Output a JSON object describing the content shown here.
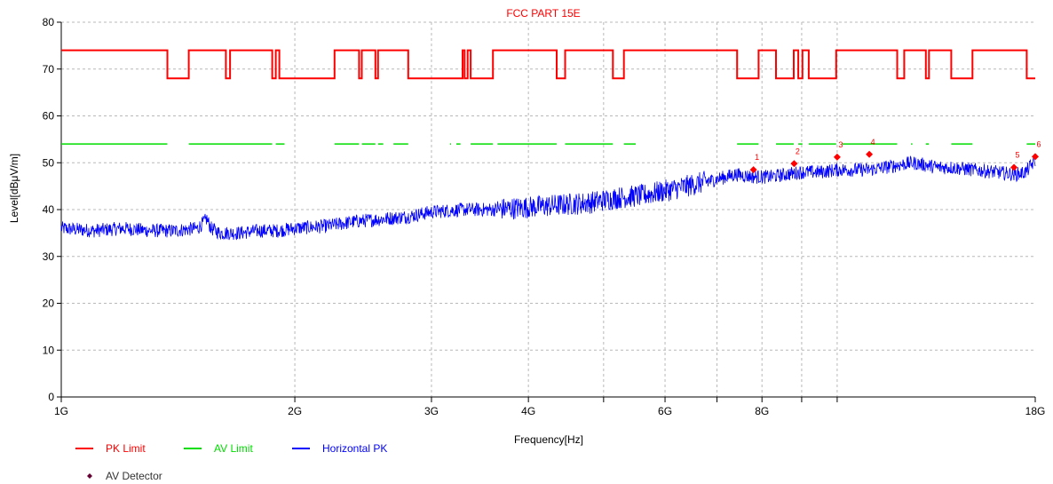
{
  "chart_data": {
    "type": "line",
    "title": "FCC PART 15E",
    "xlabel": "Frequency[Hz]",
    "ylabel": "Level[dBμV/m]",
    "xscale": "log",
    "xlim": [
      1000000000,
      18000000000
    ],
    "ylim": [
      0,
      80
    ],
    "grid": true,
    "x_ticks": [
      {
        "value": 1000000000,
        "label": "1G"
      },
      {
        "value": 2000000000,
        "label": "2G"
      },
      {
        "value": 3000000000,
        "label": "3G"
      },
      {
        "value": 4000000000,
        "label": "4G"
      },
      {
        "value": 5000000000,
        "label": ""
      },
      {
        "value": 6000000000,
        "label": "6G"
      },
      {
        "value": 7000000000,
        "label": ""
      },
      {
        "value": 8000000000,
        "label": "8G"
      },
      {
        "value": 9000000000,
        "label": ""
      },
      {
        "value": 10000000000,
        "label": ""
      },
      {
        "value": 18000000000,
        "label": "18G"
      }
    ],
    "y_ticks": [
      0,
      10,
      20,
      30,
      40,
      50,
      60,
      70,
      80
    ],
    "series": [
      {
        "name": "PK Limit",
        "color": "#ff0000",
        "style": "step",
        "x": [
          1000000000,
          1370000000,
          1370000000,
          1460000000,
          1460000000,
          1630000000,
          1630000000,
          1650000000,
          1650000000,
          1870000000,
          1870000000,
          1890000000,
          1890000000,
          1910000000,
          1910000000,
          1940000000,
          1940000000,
          2250000000,
          2250000000,
          2420000000,
          2420000000,
          2440000000,
          2440000000,
          2540000000,
          2540000000,
          2560000000,
          2560000000,
          2800000000,
          2800000000,
          3290000000,
          3290000000,
          3310000000,
          3310000000,
          3340000000,
          3340000000,
          3370000000,
          3370000000,
          3600000000,
          3600000000,
          4350000000,
          4350000000,
          4460000000,
          4460000000,
          5140000000,
          5140000000,
          5310000000,
          5310000000,
          7430000000,
          7430000000,
          7920000000,
          7920000000,
          8340000000,
          8340000000,
          8790000000,
          8790000000,
          8910000000,
          8910000000,
          9020000000,
          9020000000,
          9190000000,
          9190000000,
          9970000000,
          9970000000,
          11950000000,
          11950000000,
          12200000000,
          12200000000,
          13010000000,
          13010000000,
          13130000000,
          13130000000,
          14030000000,
          14030000000,
          14940000000,
          14940000000,
          17550000000,
          17550000000,
          18000000000
        ],
        "values": [
          74,
          74,
          68,
          68,
          74,
          74,
          68,
          68,
          74,
          74,
          68,
          68,
          74,
          74,
          68,
          68,
          68,
          68,
          74,
          74,
          68,
          68,
          74,
          74,
          68,
          68,
          74,
          74,
          68,
          68,
          74,
          74,
          68,
          68,
          74,
          74,
          68,
          68,
          74,
          74,
          68,
          68,
          74,
          74,
          68,
          68,
          74,
          74,
          68,
          68,
          74,
          74,
          68,
          68,
          74,
          74,
          68,
          68,
          74,
          74,
          68,
          68,
          74,
          74,
          68,
          68,
          74,
          74,
          68,
          68,
          74,
          74,
          68,
          68,
          74,
          74,
          68,
          68
        ]
      },
      {
        "name": "AV Limit",
        "color": "#00dd00",
        "style": "segments",
        "segments": [
          [
            1000000000,
            1370000000
          ],
          [
            1460000000,
            1870000000
          ],
          [
            1890000000,
            1940000000
          ],
          [
            2250000000,
            2420000000
          ],
          [
            2440000000,
            2540000000
          ],
          [
            2560000000,
            2600000000
          ],
          [
            2680000000,
            2800000000
          ],
          [
            3170000000,
            3180000000
          ],
          [
            3230000000,
            3270000000
          ],
          [
            3370000000,
            3600000000
          ],
          [
            3650000000,
            4350000000
          ],
          [
            4460000000,
            5140000000
          ],
          [
            5310000000,
            5500000000
          ],
          [
            7430000000,
            7920000000
          ],
          [
            8340000000,
            8790000000
          ],
          [
            8910000000,
            9020000000
          ],
          [
            9190000000,
            9970000000
          ],
          [
            10150000000,
            11950000000
          ],
          [
            12450000000,
            12500000000
          ],
          [
            13010000000,
            13130000000
          ],
          [
            14030000000,
            14940000000
          ],
          [
            17550000000,
            18000000000
          ]
        ],
        "value": 54
      },
      {
        "name": "Horizontal PK",
        "color": "#0000ff",
        "style": "noise",
        "x": [
          1000000000,
          1100000000,
          1200000000,
          1300000000,
          1400000000,
          1500000000,
          1540000000,
          1560000000,
          1600000000,
          1700000000,
          1800000000,
          1900000000,
          2000000000,
          2200000000,
          2400000000,
          2600000000,
          2800000000,
          3000000000,
          3300000000,
          3600000000,
          4000000000,
          4400000000,
          4800000000,
          5200000000,
          5600000000,
          6000000000,
          6400000000,
          7000000000,
          7400000000,
          7800000000,
          8200000000,
          8600000000,
          9000000000,
          9500000000,
          10000000000,
          10500000000,
          11000000000,
          11500000000,
          12000000000,
          12500000000,
          13000000000,
          13500000000,
          14000000000,
          15000000000,
          16000000000,
          17000000000,
          17500000000,
          18000000000
        ],
        "values": [
          36,
          35.5,
          36,
          35.5,
          35.5,
          36,
          38,
          36,
          35,
          35,
          35.5,
          35.5,
          36,
          36.5,
          37.5,
          38,
          38.5,
          39.5,
          40,
          40,
          40.5,
          41,
          41.5,
          42.5,
          43,
          44,
          45,
          46.5,
          47.5,
          47,
          47,
          47.5,
          48,
          48,
          48.5,
          48.5,
          48.5,
          49,
          49.5,
          50,
          49.5,
          49,
          49,
          48.5,
          48,
          47.5,
          48,
          50.5
        ]
      },
      {
        "name": "AV Detector",
        "color": "#660033",
        "style": "marker",
        "points": []
      }
    ],
    "markers": [
      {
        "label": "1",
        "x": 7800000000,
        "y": 48.5
      },
      {
        "label": "2",
        "x": 8800000000,
        "y": 49.8
      },
      {
        "label": "3",
        "x": 10000000000,
        "y": 51.2
      },
      {
        "label": "4",
        "x": 11000000000,
        "y": 51.8
      },
      {
        "label": "5",
        "x": 16900000000,
        "y": 49
      },
      {
        "label": "6",
        "x": 18000000000,
        "y": 51.3
      }
    ],
    "legend": {
      "placement": "bottom-left",
      "items": [
        {
          "label": "PK Limit",
          "color": "#ff0000",
          "kind": "line"
        },
        {
          "label": "AV Limit",
          "color": "#00dd00",
          "kind": "line"
        },
        {
          "label": "Horizontal PK",
          "color": "#0000ff",
          "kind": "line"
        },
        {
          "label": "AV Detector",
          "color": "#660033",
          "kind": "diamond"
        }
      ]
    }
  }
}
